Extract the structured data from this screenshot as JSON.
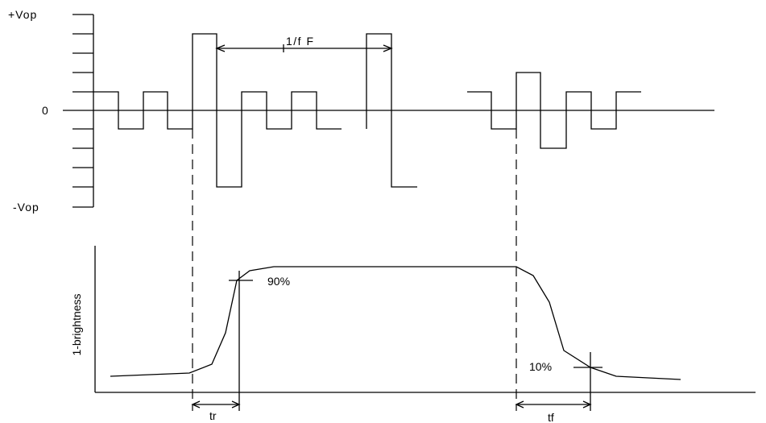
{
  "waveform": {
    "level_pos": "+Vop",
    "level_zero": "0",
    "level_neg": "-Vop",
    "period_label": "1/f F"
  },
  "response": {
    "axis_label": "1-brightness",
    "label_90": "90%",
    "label_10": "10%",
    "rise_label": "tr",
    "fall_label": "tf"
  },
  "colors": {
    "stroke": "#000000",
    "background": "#ffffff"
  }
}
